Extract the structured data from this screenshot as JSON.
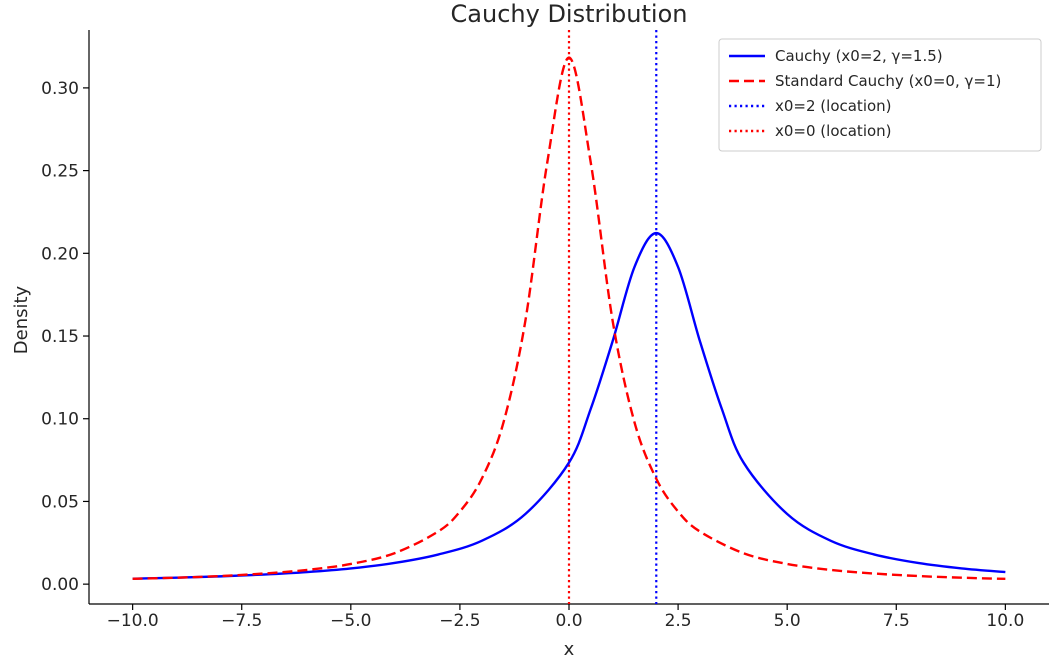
{
  "chart_data": {
    "type": "line",
    "title": "Cauchy Distribution",
    "xlabel": "x",
    "ylabel": "Density",
    "xlim": [
      -11,
      11
    ],
    "ylim": [
      -0.012,
      0.335
    ],
    "x_ticks": [
      -10.0,
      -7.5,
      -5.0,
      -2.5,
      0.0,
      2.5,
      5.0,
      7.5,
      10.0
    ],
    "x_tick_labels": [
      "−10.0",
      "−7.5",
      "−5.0",
      "−2.5",
      "0.0",
      "2.5",
      "5.0",
      "7.5",
      "10.0"
    ],
    "y_ticks": [
      0.0,
      0.05,
      0.1,
      0.15,
      0.2,
      0.25,
      0.3
    ],
    "y_tick_labels": [
      "0.00",
      "0.05",
      "0.10",
      "0.15",
      "0.20",
      "0.25",
      "0.30"
    ],
    "grid": false,
    "legend_position": "top-right",
    "series": [
      {
        "name": "Cauchy (x0=2, γ=1.5)",
        "color": "#0000ff",
        "style": "solid",
        "x": [
          -10,
          -9,
          -8,
          -7,
          -6,
          -5,
          -4,
          -3,
          -2,
          -1,
          0,
          0.5,
          1,
          1.5,
          2,
          2.5,
          3,
          3.5,
          4,
          5,
          6,
          7,
          8,
          9,
          10
        ],
        "y": [
          0.0033,
          0.0039,
          0.0047,
          0.0058,
          0.0073,
          0.0095,
          0.0128,
          0.0179,
          0.0262,
          0.0424,
          0.0735,
          0.1061,
          0.1469,
          0.1917,
          0.2122,
          0.1917,
          0.1469,
          0.1061,
          0.0735,
          0.0424,
          0.0262,
          0.0179,
          0.0128,
          0.0095,
          0.0073
        ]
      },
      {
        "name": "Standard Cauchy (x0=0, γ=1)",
        "color": "#ff0000",
        "style": "dashed",
        "x": [
          -10,
          -9,
          -8,
          -7,
          -6,
          -5,
          -4,
          -3,
          -2.5,
          -2,
          -1.5,
          -1,
          -0.5,
          0,
          0.5,
          1,
          1.5,
          2,
          2.5,
          3,
          4,
          5,
          6,
          7,
          8,
          9,
          10
        ],
        "y": [
          0.0032,
          0.0039,
          0.0049,
          0.0064,
          0.0086,
          0.0122,
          0.0187,
          0.0318,
          0.0439,
          0.0637,
          0.0979,
          0.1592,
          0.2546,
          0.3183,
          0.2546,
          0.1592,
          0.0979,
          0.0637,
          0.0439,
          0.0318,
          0.0187,
          0.0122,
          0.0086,
          0.0064,
          0.0049,
          0.0039,
          0.0032
        ]
      }
    ],
    "vlines": [
      {
        "name": "x0=2 (location)",
        "x": 2,
        "color": "#0000ff",
        "style": "dotted"
      },
      {
        "name": "x0=0 (location)",
        "x": 0,
        "color": "#ff0000",
        "style": "dotted"
      }
    ]
  }
}
